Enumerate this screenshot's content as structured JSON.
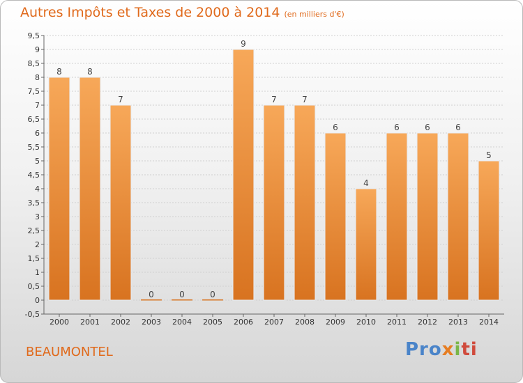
{
  "title": "Autres Impôts et Taxes de 2000 à 2014",
  "title_unit": "(en milliers d'€)",
  "commune": "BEAUMONTEL",
  "logo": {
    "p1": "Pro",
    "p2": "x",
    "p3": "i",
    "p4": "ti"
  },
  "colors": {
    "bar_top": "#f7a859",
    "bar_bottom": "#d87320",
    "title": "#e06a1c"
  },
  "chart_data": {
    "type": "bar",
    "title": "Autres Impôts et Taxes de 2000 à 2014",
    "subtitle": "(en milliers d'€)",
    "categories": [
      "2000",
      "2001",
      "2002",
      "2003",
      "2004",
      "2005",
      "2006",
      "2007",
      "2008",
      "2009",
      "2010",
      "2011",
      "2012",
      "2013",
      "2014"
    ],
    "values": [
      8,
      8,
      7,
      0,
      0,
      0,
      9,
      7,
      7,
      6,
      4,
      6,
      6,
      6,
      5
    ],
    "value_labels": [
      "8",
      "8",
      "7",
      "0",
      "0",
      "0",
      "9",
      "7",
      "7",
      "6",
      "4",
      "6",
      "6",
      "6",
      "5"
    ],
    "ylim": [
      -0.5,
      9.5
    ],
    "yticks": [
      "-0,5",
      "0",
      "0,5",
      "1",
      "1,5",
      "2",
      "2,5",
      "3",
      "3,5",
      "4",
      "4,5",
      "5",
      "5,5",
      "6",
      "6,5",
      "7",
      "7,5",
      "8",
      "8,5",
      "9",
      "9,5"
    ],
    "ytick_values": [
      -0.5,
      0,
      0.5,
      1,
      1.5,
      2,
      2.5,
      3,
      3.5,
      4,
      4.5,
      5,
      5.5,
      6,
      6.5,
      7,
      7.5,
      8,
      8.5,
      9,
      9.5
    ],
    "grid": true
  }
}
